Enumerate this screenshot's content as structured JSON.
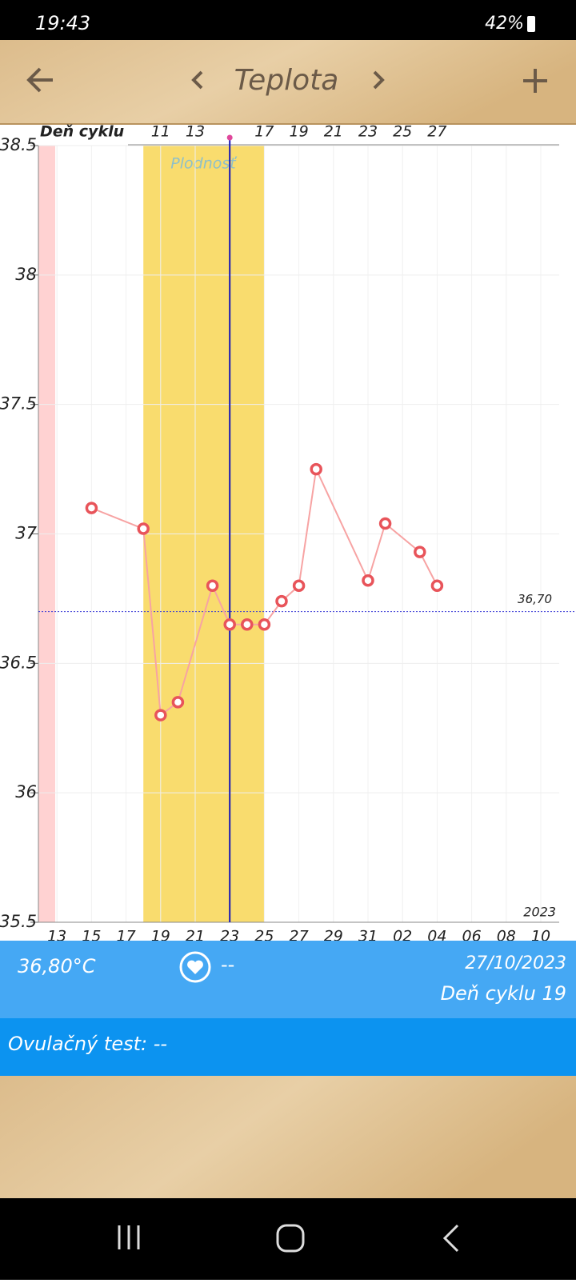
{
  "status_bar": {
    "time": "19:43",
    "battery": "42%"
  },
  "header": {
    "title": "Teplota"
  },
  "chart_data": {
    "type": "line",
    "top_axis_label": "Deň cyklu",
    "categories": [
      null,
      "13",
      null,
      "15",
      null,
      "17",
      null,
      "19",
      null,
      "21",
      null,
      "23",
      null,
      "25",
      null,
      "27",
      null,
      "29",
      null,
      "31",
      null,
      "02",
      null,
      "04",
      null,
      "06",
      null,
      "08",
      null,
      "10",
      null
    ],
    "cycle_days": [
      null,
      null,
      null,
      null,
      null,
      null,
      null,
      11,
      null,
      13,
      null,
      null,
      null,
      17,
      null,
      19,
      null,
      21,
      null,
      23,
      null,
      25,
      null,
      27,
      null,
      null,
      null,
      null,
      null,
      null,
      null
    ],
    "series": [
      {
        "color": "#e8545a",
        "values": [
          null,
          null,
          null,
          37.1,
          null,
          null,
          37.02,
          36.3,
          36.35,
          null,
          36.8,
          36.65,
          36.65,
          36.65,
          36.74,
          36.8,
          37.25,
          null,
          null,
          36.82,
          37.04,
          null,
          36.93,
          36.8,
          null,
          null,
          null,
          null,
          null,
          null,
          null
        ]
      }
    ],
    "ylim": [
      35.5,
      38.5
    ],
    "yticks": [
      35.5,
      36,
      36.5,
      37,
      37.5,
      38,
      38.5
    ],
    "grid": true,
    "reference_line": {
      "value": 36.7,
      "label": "36,70"
    },
    "fertile_label": "Plodnosť",
    "year": "2023"
  },
  "info": {
    "temperature": "36,80°C",
    "heart": "--",
    "date": "27/10/2023",
    "cycle_day": "Deň cyklu 19"
  },
  "ovulation_test": "Ovulačný test: --"
}
